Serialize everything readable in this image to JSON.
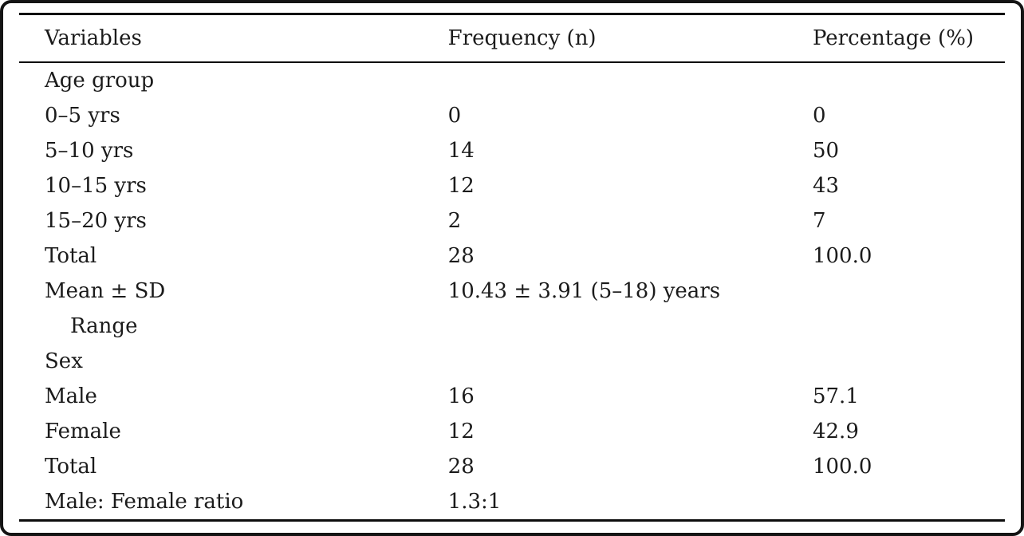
{
  "table": {
    "columns": [
      "Variables",
      "Frequency (n)",
      "Percentage (%)"
    ],
    "rows": [
      {
        "variable": "Age group",
        "frequency": "",
        "percentage": ""
      },
      {
        "variable": "0–5 yrs",
        "frequency": "0",
        "percentage": "0"
      },
      {
        "variable": "5–10 yrs",
        "frequency": "14",
        "percentage": "50"
      },
      {
        "variable": "10–15 yrs",
        "frequency": "12",
        "percentage": "43"
      },
      {
        "variable": "15–20 yrs",
        "frequency": "2",
        "percentage": "7"
      },
      {
        "variable": "Total",
        "frequency": "28",
        "percentage": "100.0"
      },
      {
        "variable": "Mean ± SD",
        "frequency": "10.43 ± 3.91 (5–18) years",
        "percentage": ""
      },
      {
        "variable": "Range",
        "frequency": "",
        "percentage": "",
        "indent": true
      },
      {
        "variable": "Sex",
        "frequency": "",
        "percentage": ""
      },
      {
        "variable": "Male",
        "frequency": "16",
        "percentage": "57.1"
      },
      {
        "variable": "Female",
        "frequency": "12",
        "percentage": "42.9"
      },
      {
        "variable": "Total",
        "frequency": "28",
        "percentage": "100.0"
      },
      {
        "variable": "Male: Female ratio",
        "frequency": "1.3:1",
        "percentage": ""
      }
    ]
  }
}
